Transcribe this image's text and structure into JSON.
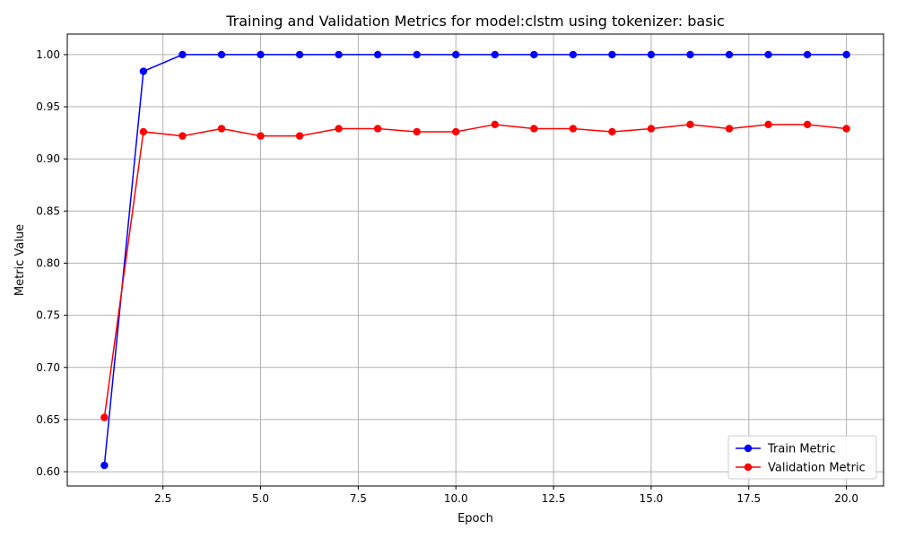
{
  "chart_data": {
    "type": "line",
    "title": "Training and Validation Metrics for model:clstm using tokenizer: basic",
    "xlabel": "Epoch",
    "ylabel": "Metric Value",
    "xlim": [
      0.05,
      20.95
    ],
    "ylim": [
      0.5863,
      1.0197
    ],
    "xticks": [
      2.5,
      5.0,
      7.5,
      10.0,
      12.5,
      15.0,
      17.5,
      20.0
    ],
    "xtick_labels": [
      "2.5",
      "5.0",
      "7.5",
      "10.0",
      "12.5",
      "15.0",
      "17.5",
      "20.0"
    ],
    "yticks": [
      0.6,
      0.65,
      0.7,
      0.75,
      0.8,
      0.85,
      0.9,
      0.95,
      1.0
    ],
    "ytick_labels": [
      "0.60",
      "0.65",
      "0.70",
      "0.75",
      "0.80",
      "0.85",
      "0.90",
      "0.95",
      "1.00"
    ],
    "grid": true,
    "legend_position": "bottom-right",
    "x": [
      1,
      2,
      3,
      4,
      5,
      6,
      7,
      8,
      9,
      10,
      11,
      12,
      13,
      14,
      15,
      16,
      17,
      18,
      19,
      20
    ],
    "series": [
      {
        "name": "Train Metric",
        "color": "#0000ff",
        "values": [
          0.606,
          0.984,
          1.0,
          1.0,
          1.0,
          1.0,
          1.0,
          1.0,
          1.0,
          1.0,
          1.0,
          1.0,
          1.0,
          1.0,
          1.0,
          1.0,
          1.0,
          1.0,
          1.0,
          1.0
        ]
      },
      {
        "name": "Validation Metric",
        "color": "#ff0000",
        "values": [
          0.652,
          0.926,
          0.922,
          0.929,
          0.922,
          0.922,
          0.929,
          0.929,
          0.926,
          0.926,
          0.933,
          0.929,
          0.929,
          0.926,
          0.929,
          0.933,
          0.929,
          0.933,
          0.933,
          0.929
        ]
      }
    ]
  }
}
